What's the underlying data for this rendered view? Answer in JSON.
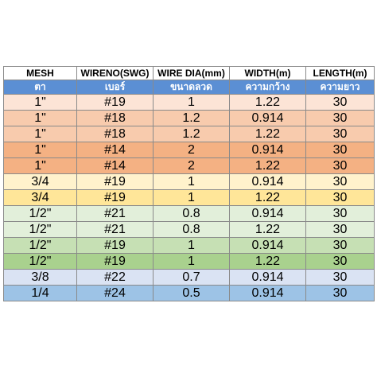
{
  "table": {
    "headers_en": [
      "MESH",
      "WIRENO(SWG)",
      "WIRE DIA(mm)",
      "WIDTH(m)",
      "LENGTH(m)"
    ],
    "headers_th": [
      "ตา",
      "เบอร์",
      "ขนาดลวด",
      "ความกว้าง",
      "ความยาว"
    ],
    "rows": [
      {
        "cells": [
          "1\"",
          "#19",
          "1",
          "1.22",
          "30"
        ],
        "color": "#fce4d6"
      },
      {
        "cells": [
          "1\"",
          "#18",
          "1.2",
          "0.914",
          "30"
        ],
        "color": "#f8cbad"
      },
      {
        "cells": [
          "1\"",
          "#18",
          "1.2",
          "1.22",
          "30"
        ],
        "color": "#f8cbad"
      },
      {
        "cells": [
          "1\"",
          "#14",
          "2",
          "0.914",
          "30"
        ],
        "color": "#f4b183"
      },
      {
        "cells": [
          "1\"",
          "#14",
          "2",
          "1.22",
          "30"
        ],
        "color": "#f4b183"
      },
      {
        "cells": [
          "3/4",
          "#19",
          "1",
          "0.914",
          "30"
        ],
        "color": "#fff2cc"
      },
      {
        "cells": [
          "3/4",
          "#19",
          "1",
          "1.22",
          "30"
        ],
        "color": "#ffe699"
      },
      {
        "cells": [
          "1/2\"",
          "#21",
          "0.8",
          "0.914",
          "30"
        ],
        "color": "#e2efda"
      },
      {
        "cells": [
          "1/2\"",
          "#21",
          "0.8",
          "1.22",
          "30"
        ],
        "color": "#e2efda"
      },
      {
        "cells": [
          "1/2\"",
          "#19",
          "1",
          "0.914",
          "30"
        ],
        "color": "#c6e0b4"
      },
      {
        "cells": [
          "1/2\"",
          "#19",
          "1",
          "1.22",
          "30"
        ],
        "color": "#a9d18e"
      },
      {
        "cells": [
          "3/8",
          "#22",
          "0.7",
          "0.914",
          "30"
        ],
        "color": "#dae3f3"
      },
      {
        "cells": [
          "1/4",
          "#24",
          "0.5",
          "0.914",
          "30"
        ],
        "color": "#9dc3e6"
      }
    ]
  }
}
